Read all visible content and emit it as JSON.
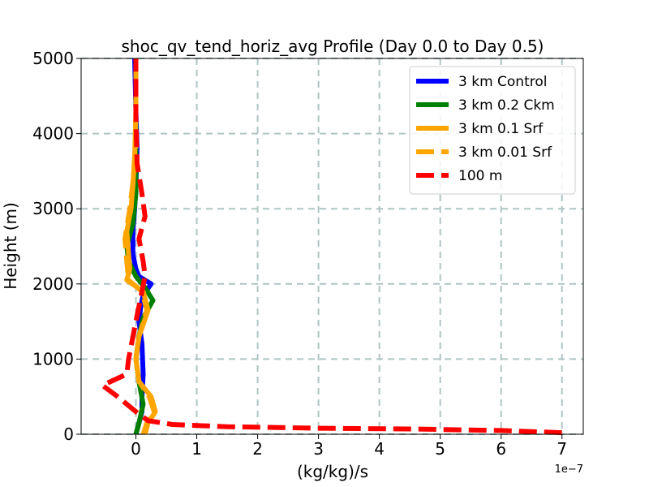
{
  "chart_data": {
    "type": "line",
    "title": "shoc_qv_tend_horiz_avg Profile (Day 0.0 to Day 0.5)",
    "xlabel": "(kg/kg)/s",
    "ylabel": "Height (m)",
    "x_offset_label": "1e−7",
    "xlim": [
      -0.9,
      7.35
    ],
    "ylim": [
      0,
      5000
    ],
    "x_ticks": [
      0,
      1,
      2,
      3,
      4,
      5,
      6,
      7
    ],
    "y_ticks": [
      0,
      1000,
      2000,
      3000,
      4000,
      5000
    ],
    "grid": true,
    "legend_position": "top-right",
    "series": [
      {
        "name": "3 km Control",
        "color": "#0000ff",
        "style": "solid",
        "x": [
          0.0,
          0.05,
          0.1,
          0.1,
          0.12,
          0.1,
          0.05,
          0.08,
          0.12,
          0.25,
          0.05,
          0.0,
          -0.05,
          -0.05,
          -0.02,
          0.0,
          0.02,
          0.0,
          -0.02
        ],
        "y": [
          0,
          150,
          300,
          500,
          800,
          1200,
          1500,
          1700,
          1850,
          2000,
          2100,
          2200,
          2400,
          2700,
          3000,
          3300,
          3800,
          4300,
          5000
        ]
      },
      {
        "name": "3 km 0.2 Ckm",
        "color": "#008000",
        "style": "solid",
        "x": [
          0.0,
          0.05,
          0.12,
          0.05,
          0.0,
          0.05,
          0.12,
          0.28,
          0.15,
          0.0,
          -0.12,
          -0.15,
          -0.05,
          0.0,
          0.0,
          0.0,
          0.0
        ],
        "y": [
          0,
          150,
          400,
          700,
          1000,
          1300,
          1550,
          1780,
          1950,
          2100,
          2300,
          2500,
          2800,
          3200,
          3700,
          4300,
          5000
        ]
      },
      {
        "name": "3 km 0.1 Srf",
        "color": "#ffa500",
        "style": "solid",
        "x": [
          0.15,
          0.2,
          0.32,
          0.25,
          0.05,
          0.0,
          0.05,
          0.2,
          0.12,
          -0.15,
          -0.1,
          -0.12,
          -0.15,
          -0.08,
          -0.05,
          -0.02,
          0.0,
          0.0
        ],
        "y": [
          0,
          150,
          300,
          500,
          700,
          1000,
          1300,
          1650,
          1900,
          2050,
          2200,
          2400,
          2700,
          3000,
          3300,
          3700,
          4300,
          5000
        ]
      },
      {
        "name": "3 km 0.01 Srf",
        "color": "#ffa500",
        "style": "dashed",
        "x": [
          0.12,
          0.18,
          0.3,
          0.22,
          0.05,
          0.0,
          0.05,
          0.18,
          0.1,
          -0.12,
          -0.15,
          -0.18,
          -0.1,
          -0.05,
          0.0,
          0.0,
          0.0
        ],
        "y": [
          0,
          150,
          300,
          500,
          700,
          1000,
          1300,
          1650,
          1900,
          2050,
          2300,
          2600,
          3000,
          3350,
          3800,
          4400,
          5000
        ]
      },
      {
        "name": "100 m",
        "color": "#ff0000",
        "style": "dashed",
        "x": [
          7.0,
          6.0,
          4.5,
          3.0,
          1.5,
          0.6,
          0.2,
          0.0,
          -0.3,
          -0.55,
          -0.15,
          -0.12,
          0.0,
          0.1,
          0.15,
          0.12,
          0.05,
          0.15,
          0.1,
          0.02,
          0.0,
          0.0
        ],
        "y": [
          20,
          50,
          70,
          80,
          100,
          130,
          180,
          300,
          500,
          650,
          800,
          1000,
          1500,
          1900,
          2100,
          2300,
          2600,
          2900,
          3200,
          3600,
          4200,
          5000
        ]
      }
    ]
  }
}
